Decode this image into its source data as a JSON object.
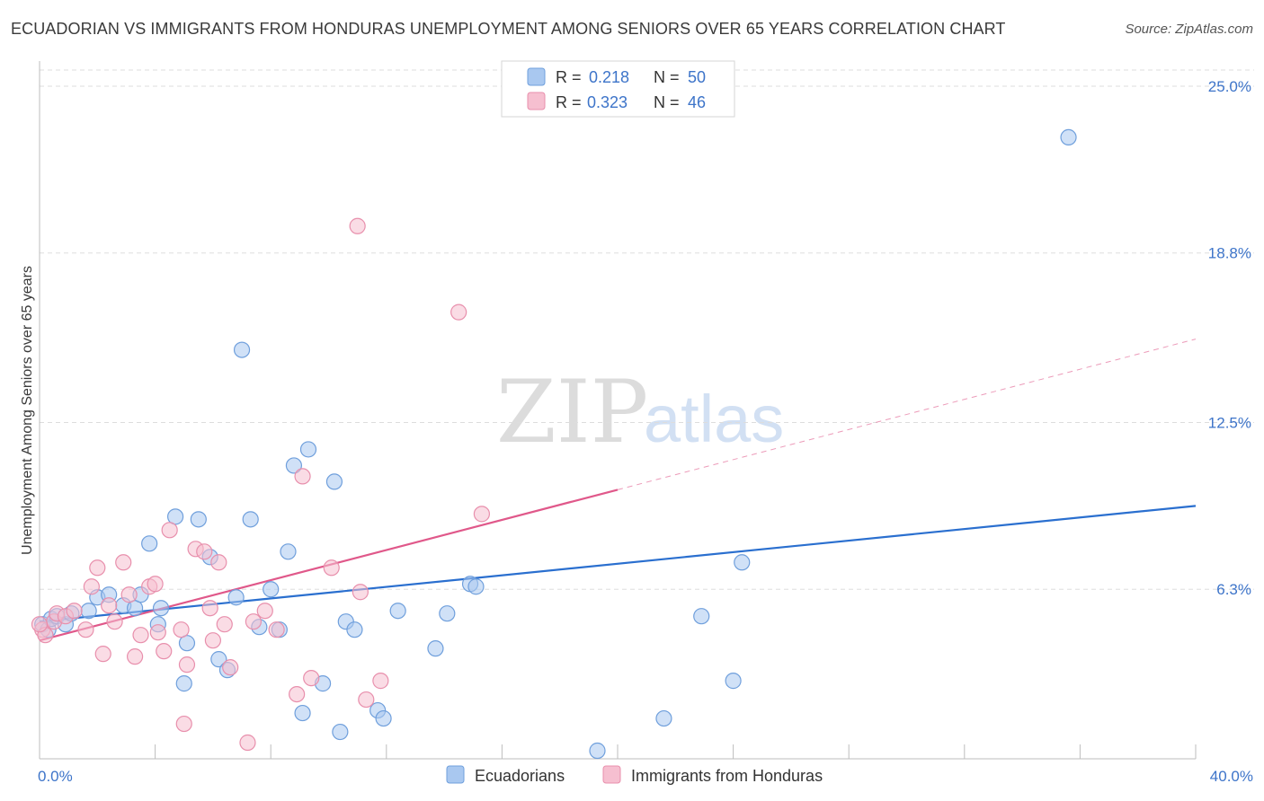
{
  "header": {
    "title": "ECUADORIAN VS IMMIGRANTS FROM HONDURAS UNEMPLOYMENT AMONG SENIORS OVER 65 YEARS CORRELATION CHART",
    "source": "Source: ZipAtlas.com"
  },
  "watermark": {
    "zip": "ZIP",
    "atlas": "atlas"
  },
  "colors": {
    "blue_fill": "#a9c8f0",
    "blue_stroke": "#6f9fdc",
    "blue_line": "#2a6fcf",
    "pink_fill": "#f6bfd0",
    "pink_stroke": "#e88fac",
    "pink_line": "#e0588a",
    "axis_text": "#3d74c9",
    "grid": "#dddddd"
  },
  "chart_data": {
    "type": "scatter",
    "xlabel": "",
    "ylabel": "Unemployment Among Seniors over 65 years",
    "xlim": [
      0,
      40
    ],
    "ylim": [
      0,
      25.6
    ],
    "x_tick_labels": [
      {
        "value": 0,
        "label": "0.0%"
      },
      {
        "value": 40,
        "label": "40.0%"
      }
    ],
    "y_tick_labels": [
      {
        "value": 6.3,
        "label": "6.3%"
      },
      {
        "value": 12.5,
        "label": "12.5%"
      },
      {
        "value": 18.8,
        "label": "18.8%"
      },
      {
        "value": 25.0,
        "label": "25.0%"
      }
    ],
    "legend_top": [
      {
        "series": "Ecuadorians",
        "r_label": "R =",
        "r_value": "0.218",
        "n_label": "N =",
        "n_value": "50"
      },
      {
        "series": "Immigrants from Honduras",
        "r_label": "R =",
        "r_value": "0.323",
        "n_label": "N =",
        "n_value": "46"
      }
    ],
    "legend_bottom": [
      "Ecuadorians",
      "Immigrants from Honduras"
    ],
    "series": [
      {
        "name": "Ecuadorians",
        "color": "blue",
        "trend": {
          "x0": 0,
          "y0": 5.1,
          "x1": 40,
          "y1": 9.4,
          "solid_to": 40
        },
        "points": [
          [
            0.1,
            5.0
          ],
          [
            0.3,
            4.8
          ],
          [
            0.4,
            5.2
          ],
          [
            0.6,
            5.3
          ],
          [
            0.9,
            5.0
          ],
          [
            1.1,
            5.4
          ],
          [
            1.7,
            5.5
          ],
          [
            2.0,
            6.0
          ],
          [
            2.4,
            6.1
          ],
          [
            2.9,
            5.7
          ],
          [
            3.3,
            5.6
          ],
          [
            3.5,
            6.1
          ],
          [
            3.8,
            8.0
          ],
          [
            4.1,
            5.0
          ],
          [
            4.2,
            5.6
          ],
          [
            4.7,
            9.0
          ],
          [
            5.0,
            2.8
          ],
          [
            5.1,
            4.3
          ],
          [
            5.5,
            8.9
          ],
          [
            5.9,
            7.5
          ],
          [
            6.2,
            3.7
          ],
          [
            6.5,
            3.3
          ],
          [
            6.8,
            6.0
          ],
          [
            7.0,
            15.2
          ],
          [
            7.3,
            8.9
          ],
          [
            7.6,
            4.9
          ],
          [
            8.0,
            6.3
          ],
          [
            8.3,
            4.8
          ],
          [
            8.6,
            7.7
          ],
          [
            8.8,
            10.9
          ],
          [
            9.1,
            1.7
          ],
          [
            9.3,
            11.5
          ],
          [
            9.8,
            2.8
          ],
          [
            10.2,
            10.3
          ],
          [
            10.4,
            1.0
          ],
          [
            10.6,
            5.1
          ],
          [
            10.9,
            4.8
          ],
          [
            11.7,
            1.8
          ],
          [
            11.9,
            1.5
          ],
          [
            12.4,
            5.5
          ],
          [
            13.7,
            4.1
          ],
          [
            14.1,
            5.4
          ],
          [
            14.9,
            6.5
          ],
          [
            15.1,
            6.4
          ],
          [
            19.3,
            0.3
          ],
          [
            21.6,
            1.5
          ],
          [
            22.9,
            5.3
          ],
          [
            24.0,
            2.9
          ],
          [
            24.3,
            7.3
          ],
          [
            35.6,
            23.1
          ]
        ]
      },
      {
        "name": "Immigrants from Honduras",
        "color": "pink",
        "trend": {
          "x0": 0,
          "y0": 4.4,
          "x1": 40,
          "y1": 15.6,
          "solid_to": 20
        },
        "points": [
          [
            0.1,
            4.8
          ],
          [
            0.2,
            4.6
          ],
          [
            0.5,
            5.1
          ],
          [
            0.6,
            5.4
          ],
          [
            0.9,
            5.3
          ],
          [
            1.2,
            5.5
          ],
          [
            1.6,
            4.8
          ],
          [
            1.8,
            6.4
          ],
          [
            2.0,
            7.1
          ],
          [
            2.2,
            3.9
          ],
          [
            2.4,
            5.7
          ],
          [
            2.6,
            5.1
          ],
          [
            2.9,
            7.3
          ],
          [
            3.1,
            6.1
          ],
          [
            3.3,
            3.8
          ],
          [
            3.5,
            4.6
          ],
          [
            3.8,
            6.4
          ],
          [
            4.0,
            6.5
          ],
          [
            4.1,
            4.7
          ],
          [
            4.3,
            4.0
          ],
          [
            4.5,
            8.5
          ],
          [
            4.9,
            4.8
          ],
          [
            5.0,
            1.3
          ],
          [
            5.1,
            3.5
          ],
          [
            5.4,
            7.8
          ],
          [
            5.7,
            7.7
          ],
          [
            5.9,
            5.6
          ],
          [
            6.0,
            4.4
          ],
          [
            6.2,
            7.3
          ],
          [
            6.4,
            5.0
          ],
          [
            6.6,
            3.4
          ],
          [
            7.2,
            0.6
          ],
          [
            7.4,
            5.1
          ],
          [
            7.8,
            5.5
          ],
          [
            8.2,
            4.8
          ],
          [
            8.9,
            2.4
          ],
          [
            9.1,
            10.5
          ],
          [
            9.4,
            3.0
          ],
          [
            10.1,
            7.1
          ],
          [
            11.0,
            19.8
          ],
          [
            11.1,
            6.2
          ],
          [
            11.3,
            2.2
          ],
          [
            11.8,
            2.9
          ],
          [
            14.5,
            16.6
          ],
          [
            15.3,
            9.1
          ],
          [
            0.0,
            5.0
          ]
        ]
      }
    ]
  }
}
